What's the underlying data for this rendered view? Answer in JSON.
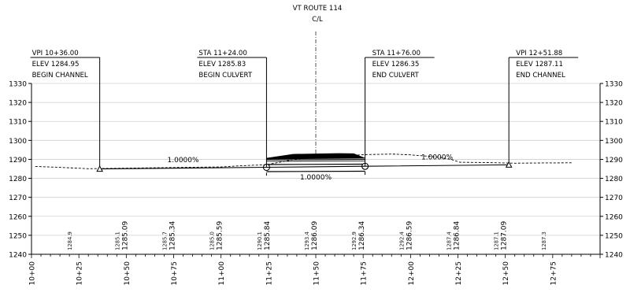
{
  "title": {
    "route": "VT ROUTE 114",
    "centerline": "C/L"
  },
  "callouts": [
    {
      "line1": "VPI 10+36.00",
      "line2": "ELEV 1284.95",
      "line3": "BEGIN CHANNEL",
      "sta": 1036.0,
      "elev": 1284.95,
      "side": "right"
    },
    {
      "line1": "STA 11+24.00",
      "line2": "ELEV 1285.83",
      "line3": "BEGIN CULVERT",
      "sta": 1124.0,
      "elev": 1285.83,
      "side": "right"
    },
    {
      "line1": "STA 11+76.00",
      "line2": "ELEV 1286.35",
      "line3": "END CULVERT",
      "sta": 1176.0,
      "elev": 1286.35,
      "side": "left"
    },
    {
      "line1": "VPI 12+51.88",
      "line2": "ELEV 1287.11",
      "line3": "END CHANNEL",
      "sta": 1251.88,
      "elev": 1287.11,
      "side": "left"
    }
  ],
  "grades": [
    {
      "text": "1.0000%",
      "sta": 1080,
      "elev": 1288.6
    },
    {
      "text": "1.0000%",
      "sta": 1150,
      "elev": 1279.3
    },
    {
      "text": "1.0000%",
      "sta": 1214,
      "elev": 1290.0
    }
  ],
  "chart_data": {
    "type": "line",
    "x_range": [
      1000,
      1300
    ],
    "ylim": [
      1240,
      1330
    ],
    "y_ticks": [
      "1240",
      "1250",
      "1260",
      "1270",
      "1280",
      "1290",
      "1300",
      "1310",
      "1320",
      "1330"
    ],
    "x_ticks": [
      "10+00",
      "10+25",
      "10+50",
      "10+75",
      "11+00",
      "11+25",
      "11+50",
      "11+75",
      "12+00",
      "12+25",
      "12+50",
      "12+75"
    ],
    "series": [
      {
        "style": "solid",
        "points": [
          [
            1036.0,
            1284.95
          ],
          [
            1124.0,
            1285.83
          ],
          [
            1176.0,
            1286.35
          ],
          [
            1251.88,
            1287.11
          ]
        ]
      },
      {
        "style": "dashed",
        "points": [
          [
            1002,
            1286.3
          ],
          [
            1015,
            1285.8
          ],
          [
            1030,
            1285.1
          ],
          [
            1060,
            1285.5
          ],
          [
            1090,
            1285.9
          ],
          [
            1100,
            1286.0
          ],
          [
            1110,
            1286.6
          ],
          [
            1124,
            1287.2
          ],
          [
            1140,
            1290.2
          ],
          [
            1160,
            1291.6
          ],
          [
            1176,
            1292.5
          ],
          [
            1190,
            1292.8
          ],
          [
            1200,
            1292.4
          ],
          [
            1215,
            1291.2
          ],
          [
            1222,
            1289.8
          ],
          [
            1226,
            1288.5
          ],
          [
            1240,
            1288.3
          ],
          [
            1255,
            1288.0
          ],
          [
            1268,
            1288.1
          ],
          [
            1285,
            1288.2
          ]
        ]
      }
    ],
    "elevation_labels": [
      {
        "sta": 1020,
        "existing": "1284.9",
        "design": ""
      },
      {
        "sta": 1045,
        "existing": "1285.1",
        "design": "1285.09"
      },
      {
        "sta": 1070,
        "existing": "1285.7",
        "design": "1285.34"
      },
      {
        "sta": 1095,
        "existing": "1285.0",
        "design": "1285.59"
      },
      {
        "sta": 1120,
        "existing": "1290.1",
        "design": "1285.84"
      },
      {
        "sta": 1145,
        "existing": "1293.4",
        "design": "1286.09"
      },
      {
        "sta": 1170,
        "existing": "1292.9",
        "design": "1286.34"
      },
      {
        "sta": 1195,
        "existing": "1292.4",
        "design": "1286.59"
      },
      {
        "sta": 1220,
        "existing": "1287.4",
        "design": "1286.84"
      },
      {
        "sta": 1245,
        "existing": "1287.1",
        "design": "1287.09"
      },
      {
        "sta": 1270,
        "existing": "1287.3",
        "design": ""
      }
    ]
  }
}
